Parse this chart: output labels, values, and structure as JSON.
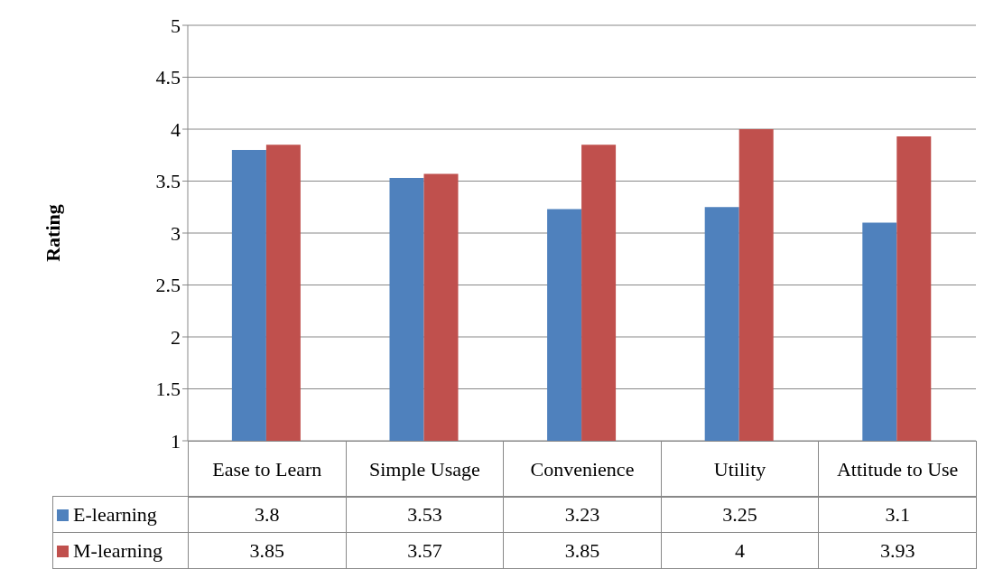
{
  "chart_data": {
    "type": "bar",
    "ylabel": "Rating",
    "categories": [
      "Ease to Learn",
      "Simple Usage",
      "Convenience",
      "Utility",
      "Attitude to Use"
    ],
    "series": [
      {
        "name": "E-learning",
        "color": "#4f81bd",
        "values": [
          3.8,
          3.53,
          3.23,
          3.25,
          3.1
        ]
      },
      {
        "name": "M-learning",
        "color": "#c0504d",
        "values": [
          3.85,
          3.57,
          3.85,
          4,
          3.93
        ]
      }
    ],
    "ylim": [
      1,
      5
    ],
    "yticks": [
      1,
      1.5,
      2,
      2.5,
      3,
      3.5,
      4,
      4.5,
      5
    ],
    "grid": "y",
    "legend": "bottom",
    "data_labels": true
  }
}
